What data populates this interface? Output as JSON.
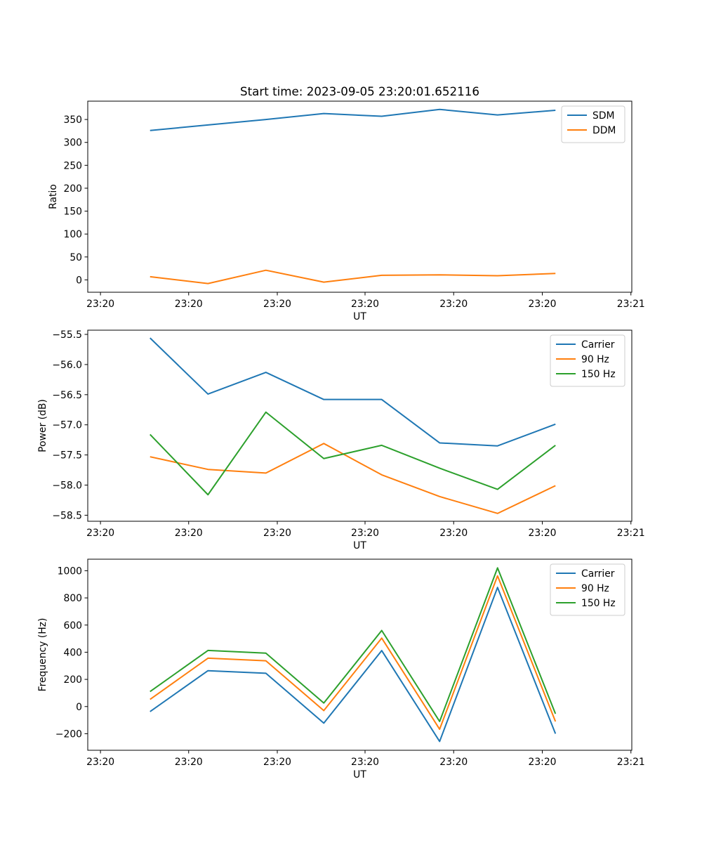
{
  "figure_title": "Start time: 2023-09-05 23:20:01.652116",
  "chart_data": [
    {
      "type": "line",
      "title": "Start time: 2023-09-05 23:20:01.652116",
      "xlabel": "UT",
      "ylabel": "Ratio",
      "x": [
        0.71,
        1.37,
        2.03,
        2.69,
        3.35,
        4.01,
        4.67,
        5.33
      ],
      "xlim": [
        0,
        6.2
      ],
      "xtick_positions": [
        0.145,
        1.15,
        2.16,
        3.16,
        4.17,
        5.18,
        6.19
      ],
      "xtick_labels": [
        "23:20",
        "23:20",
        "23:20",
        "23:20",
        "23:20",
        "23:20",
        "23:21"
      ],
      "ylim": [
        -27,
        390
      ],
      "yticks": [
        0,
        50,
        100,
        150,
        200,
        250,
        300,
        350
      ],
      "ytick_labels": [
        "0",
        "50",
        "100",
        "150",
        "200",
        "250",
        "300",
        "350"
      ],
      "legend_position": "top-right",
      "series": [
        {
          "name": "SDM",
          "color": "#1f77b4",
          "values": [
            326,
            338,
            350,
            363,
            357,
            372,
            360,
            370
          ]
        },
        {
          "name": "DDM",
          "color": "#ff7f0e",
          "values": [
            7,
            -8,
            21,
            -5,
            10,
            11,
            9,
            14
          ]
        }
      ]
    },
    {
      "type": "line",
      "title": "",
      "xlabel": "UT",
      "ylabel": "Power (dB)",
      "x": [
        0.71,
        1.37,
        2.03,
        2.69,
        3.35,
        4.01,
        4.67,
        5.33
      ],
      "xlim": [
        0,
        6.2
      ],
      "xtick_positions": [
        0.145,
        1.15,
        2.16,
        3.16,
        4.17,
        5.18,
        6.19
      ],
      "xtick_labels": [
        "23:20",
        "23:20",
        "23:20",
        "23:20",
        "23:20",
        "23:20",
        "23:21"
      ],
      "ylim": [
        -58.6,
        -55.43
      ],
      "yticks": [
        -58.5,
        -58.0,
        -57.5,
        -57.0,
        -56.5,
        -56.0,
        -55.5
      ],
      "ytick_labels": [
        "−58.5",
        "−58.0",
        "−57.5",
        "−57.0",
        "−56.5",
        "−56.0",
        "−55.5"
      ],
      "legend_position": "top-right",
      "series": [
        {
          "name": "Carrier",
          "color": "#1f77b4",
          "values": [
            -55.56,
            -56.49,
            -56.13,
            -56.58,
            -56.58,
            -57.3,
            -57.35,
            -56.99
          ]
        },
        {
          "name": "90 Hz",
          "color": "#ff7f0e",
          "values": [
            -57.53,
            -57.74,
            -57.8,
            -57.31,
            -57.83,
            -58.19,
            -58.47,
            -58.01
          ]
        },
        {
          "name": "150 Hz",
          "color": "#2ca02c",
          "values": [
            -57.16,
            -58.16,
            -56.79,
            -57.56,
            -57.34,
            -57.72,
            -58.07,
            -57.34
          ]
        }
      ]
    },
    {
      "type": "line",
      "title": "",
      "xlabel": "UT",
      "ylabel": "Frequency (Hz)",
      "x": [
        0.71,
        1.37,
        2.03,
        2.69,
        3.35,
        4.01,
        4.67,
        5.33
      ],
      "xlim": [
        0,
        6.2
      ],
      "xtick_positions": [
        0.145,
        1.15,
        2.16,
        3.16,
        4.17,
        5.18,
        6.19
      ],
      "xtick_labels": [
        "23:20",
        "23:20",
        "23:20",
        "23:20",
        "23:20",
        "23:20",
        "23:21"
      ],
      "ylim": [
        -322,
        1085
      ],
      "yticks": [
        -200,
        0,
        200,
        400,
        600,
        800,
        1000
      ],
      "ytick_labels": [
        "−200",
        "0",
        "200",
        "400",
        "600",
        "800",
        "1000"
      ],
      "legend_position": "top-right",
      "series": [
        {
          "name": "Carrier",
          "color": "#1f77b4",
          "values": [
            -37,
            264,
            245,
            -122,
            412,
            -257,
            877,
            -200
          ]
        },
        {
          "name": "90 Hz",
          "color": "#ff7f0e",
          "values": [
            53,
            356,
            337,
            -30,
            504,
            -167,
            962,
            -110
          ]
        },
        {
          "name": "150 Hz",
          "color": "#2ca02c",
          "values": [
            110,
            413,
            393,
            26,
            560,
            -110,
            1021,
            -53
          ]
        }
      ]
    }
  ]
}
